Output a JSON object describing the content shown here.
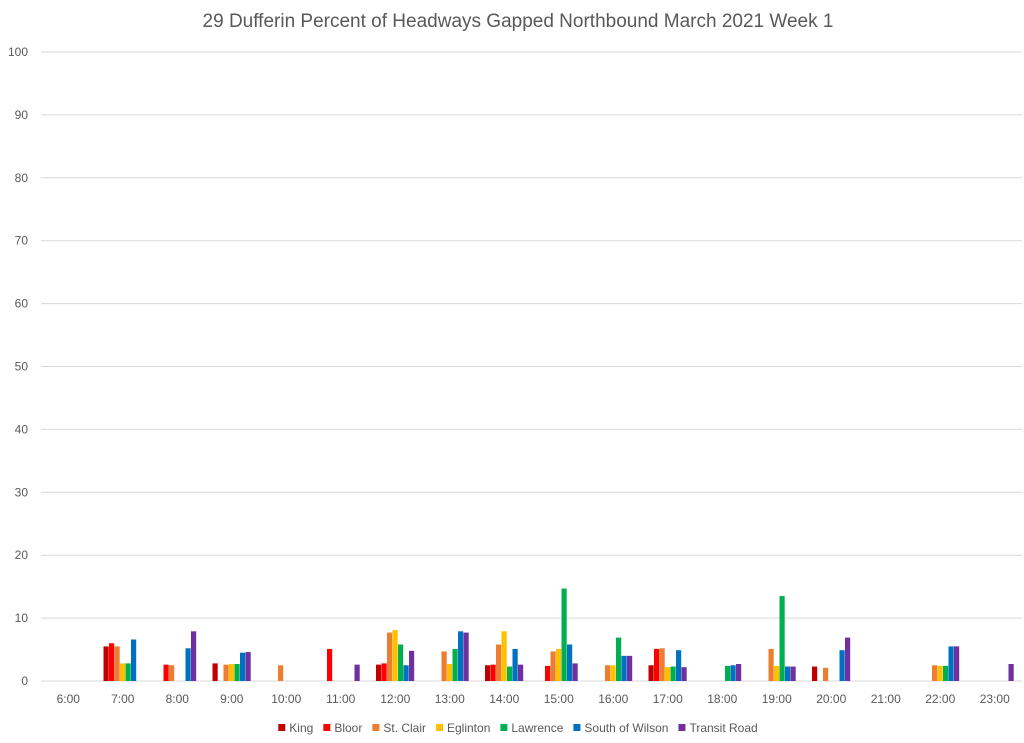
{
  "chart_data": {
    "type": "bar",
    "title": "29 Dufferin  Percent of Headways Gapped Northbound March 2021 Week 1",
    "xlabel": "",
    "ylabel": "",
    "ylim": [
      0,
      100
    ],
    "yticks": [
      "0",
      "10",
      "20",
      "30",
      "40",
      "50",
      "60",
      "70",
      "80",
      "90",
      "100"
    ],
    "grid": true,
    "legend_position": "bottom",
    "categories": [
      "6:00",
      "7:00",
      "8:00",
      "9:00",
      "10:00",
      "11:00",
      "12:00",
      "13:00",
      "14:00",
      "15:00",
      "16:00",
      "17:00",
      "18:00",
      "19:00",
      "20:00",
      "21:00",
      "22:00",
      "23:00"
    ],
    "series": [
      {
        "name": "King",
        "color": "#c00000",
        "values": [
          0,
          5.5,
          0,
          2.8,
          0,
          0,
          2.6,
          0,
          2.5,
          0,
          0,
          2.5,
          0,
          0,
          2.3,
          0,
          0,
          0
        ]
      },
      {
        "name": "Bloor",
        "color": "#ff0000",
        "values": [
          0,
          6.0,
          2.6,
          0,
          0,
          5.1,
          2.8,
          0,
          2.6,
          2.4,
          0,
          5.1,
          0,
          0,
          0,
          0,
          0,
          0
        ]
      },
      {
        "name": "St. Clair",
        "color": "#ed7d31",
        "values": [
          0,
          5.5,
          2.5,
          2.6,
          2.5,
          0,
          7.7,
          4.7,
          5.8,
          4.7,
          2.5,
          5.2,
          0,
          5.1,
          2.1,
          0,
          2.5,
          0
        ]
      },
      {
        "name": "Eglinton",
        "color": "#ffc000",
        "values": [
          0,
          2.8,
          0,
          2.7,
          0,
          0,
          8.1,
          2.7,
          7.9,
          5.1,
          2.5,
          2.2,
          0,
          2.4,
          0,
          0,
          2.4,
          0
        ]
      },
      {
        "name": "Lawrence",
        "color": "#00b050",
        "values": [
          0,
          2.8,
          0,
          2.7,
          0,
          0,
          5.8,
          5.1,
          2.3,
          14.7,
          6.9,
          2.3,
          2.4,
          13.5,
          0,
          0,
          2.4,
          0
        ]
      },
      {
        "name": "South of Wilson",
        "color": "#0070c0",
        "values": [
          0,
          6.6,
          5.2,
          4.5,
          0,
          0,
          2.5,
          7.9,
          5.1,
          5.8,
          4.0,
          4.9,
          2.5,
          2.3,
          4.9,
          0,
          5.5,
          0
        ]
      },
      {
        "name": "Transit Road",
        "color": "#7030a0",
        "values": [
          0,
          0,
          7.9,
          4.6,
          0,
          2.6,
          4.8,
          7.7,
          2.6,
          2.8,
          4.0,
          2.2,
          2.7,
          2.3,
          6.9,
          0,
          5.5,
          2.7
        ]
      }
    ]
  }
}
